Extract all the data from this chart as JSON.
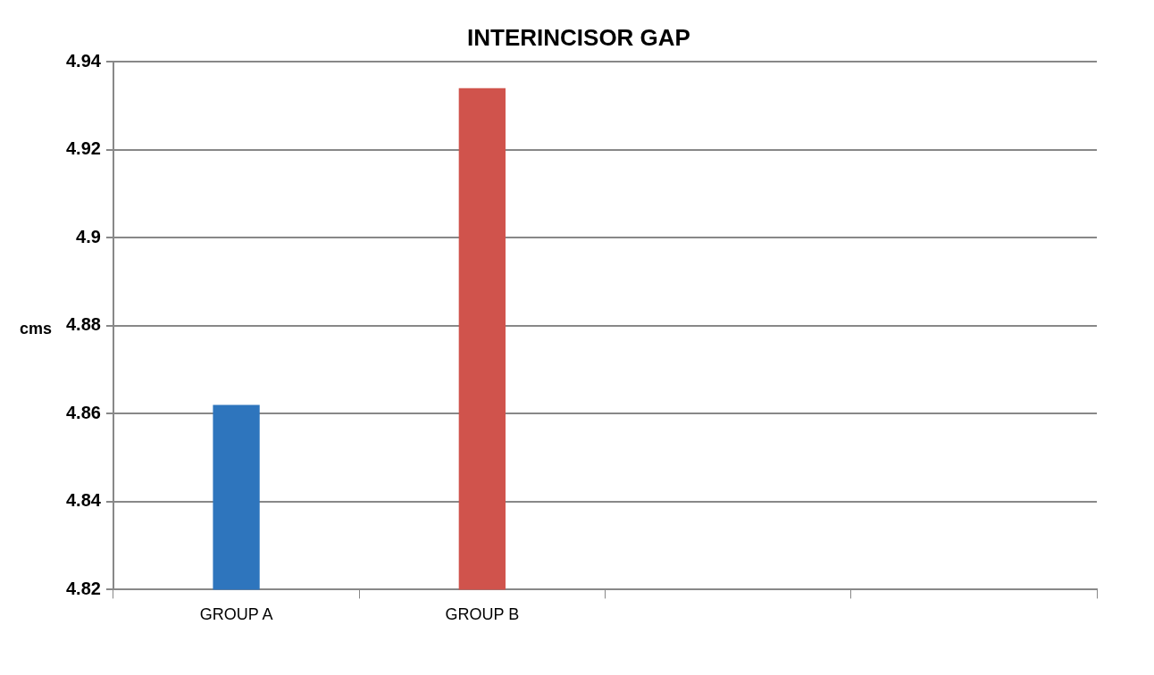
{
  "chart_data": {
    "type": "bar",
    "title": "INTERINCISOR GAP",
    "ylabel": "cms",
    "categories": [
      "GROUP A",
      "GROUP B",
      null,
      null
    ],
    "values": [
      4.862,
      4.934,
      null,
      null
    ],
    "colors": [
      "#2e75bd",
      "#d0534c",
      null,
      null
    ],
    "ylim": [
      4.82,
      4.94
    ],
    "yticks": [
      4.82,
      4.84,
      4.86,
      4.88,
      4.9,
      4.92,
      4.94
    ],
    "grid": "y"
  }
}
